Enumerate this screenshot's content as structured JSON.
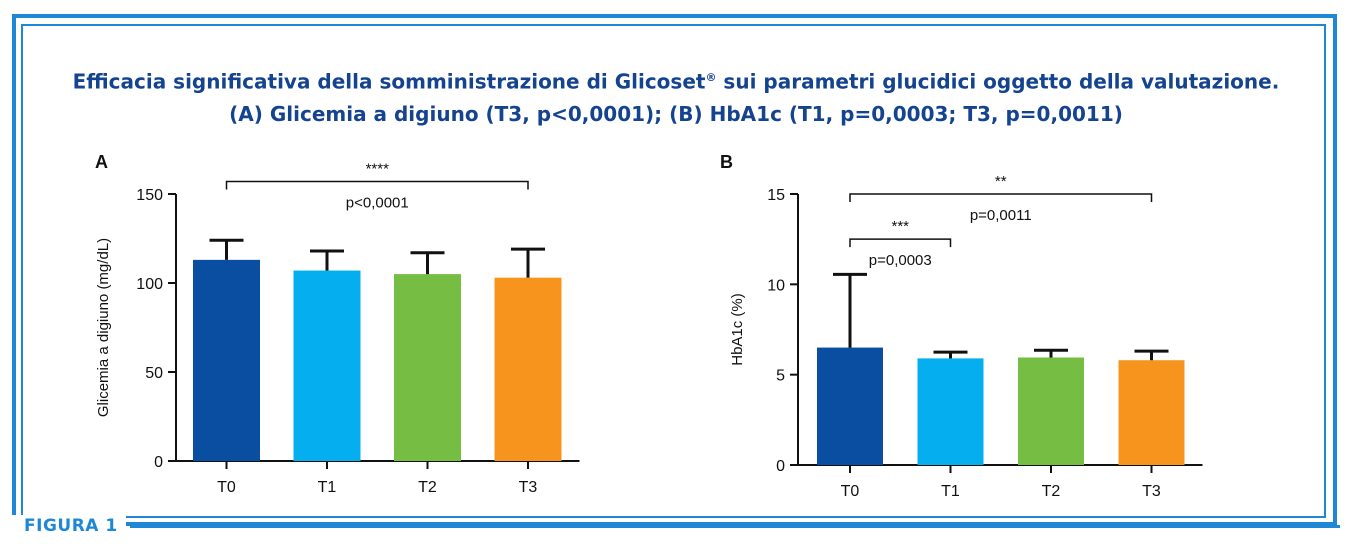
{
  "figure_label": "FIGURA 1",
  "title": {
    "line1": "Efficacia significativa della somministrazione di Glicoset",
    "reg": "®",
    "line1b": " sui parametri glucidici oggetto della valutazione.",
    "line2": "(A) Glicemia a digiuno (T3, p<0,0001); (B) HbA1c (T1, p=0,0003; T3, p=0,0011)"
  },
  "colors": {
    "frame": "#1e88d6",
    "title": "#14438f",
    "bars": [
      "#0a4ea1",
      "#04aeef",
      "#76bd43",
      "#f7941d"
    ]
  },
  "chart_data": [
    {
      "type": "bar",
      "panel": "A",
      "categories": [
        "T0",
        "T1",
        "T2",
        "T3"
      ],
      "values": [
        113,
        107,
        105,
        103
      ],
      "errors": [
        11,
        11,
        12,
        16
      ],
      "ylabel": "Glicemia a digiuno (mg/dL)",
      "ylim": [
        0,
        150
      ],
      "yticks": [
        0,
        50,
        100,
        150
      ],
      "annotations": [
        {
          "from": 0,
          "to": 3,
          "level": 157,
          "stars": "****",
          "p": "p<0,0001"
        }
      ]
    },
    {
      "type": "bar",
      "panel": "B",
      "categories": [
        "T0",
        "T1",
        "T2",
        "T3"
      ],
      "values": [
        6.5,
        5.9,
        5.95,
        5.8
      ],
      "errors": [
        4.05,
        0.35,
        0.4,
        0.5
      ],
      "ylabel": "HbA1c (%)",
      "ylim": [
        0,
        15
      ],
      "yticks": [
        0,
        5,
        10,
        15
      ],
      "annotations": [
        {
          "from": 0,
          "to": 1,
          "level": 12.5,
          "stars": "***",
          "p": "p=0,0003"
        },
        {
          "from": 0,
          "to": 3,
          "level": 15,
          "stars": "**",
          "p": "p=0,0011"
        }
      ]
    }
  ]
}
